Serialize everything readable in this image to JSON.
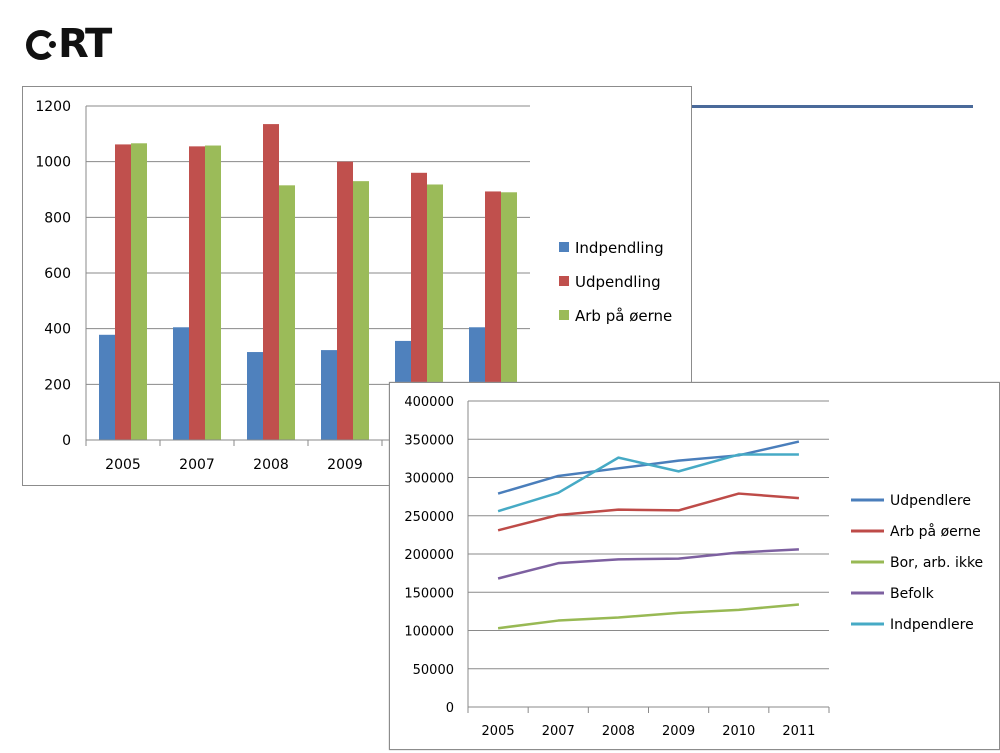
{
  "logo": {
    "letter_c": "C",
    "letters": "RT"
  },
  "colors": {
    "accent_line": "#4a6a9a"
  },
  "chart_data": [
    {
      "type": "bar",
      "categories": [
        "2005",
        "2007",
        "2008",
        "2009",
        "2010",
        "2011"
      ],
      "series": [
        {
          "name": "Indpendling",
          "color": "#4f81bd",
          "values": [
            378,
            405,
            316,
            323,
            356,
            405
          ]
        },
        {
          "name": "Udpendling",
          "color": "#c0504d",
          "values": [
            1062,
            1055,
            1135,
            1000,
            960,
            893
          ]
        },
        {
          "name": "Arb på øerne",
          "color": "#9bbb59",
          "values": [
            1066,
            1058,
            915,
            930,
            918,
            890
          ]
        }
      ],
      "ylim": [
        0,
        1200
      ],
      "yticks": [
        "0",
        "200",
        "400",
        "600",
        "800",
        "1000",
        "1200"
      ],
      "grid": true,
      "legend": "right"
    },
    {
      "type": "line",
      "categories": [
        "2005",
        "2007",
        "2008",
        "2009",
        "2010",
        "2011"
      ],
      "series": [
        {
          "name": "Udpendlere",
          "color": "#4a7ebb",
          "values": [
            279000,
            302000,
            312000,
            322000,
            329000,
            347000
          ]
        },
        {
          "name": "Arb på øerne",
          "color": "#be4b48",
          "values": [
            231000,
            251000,
            258000,
            257000,
            279000,
            273000
          ]
        },
        {
          "name": "Bor, arb. ikke",
          "color": "#98b954",
          "values": [
            103000,
            113000,
            117000,
            123000,
            127000,
            134000
          ]
        },
        {
          "name": "Befolk",
          "color": "#7d60a0",
          "values": [
            168000,
            188000,
            193000,
            194000,
            202000,
            206000
          ]
        },
        {
          "name": "Indpendlere",
          "color": "#46aac5",
          "values": [
            256000,
            280000,
            326000,
            308000,
            330000,
            330000
          ]
        }
      ],
      "ylim": [
        0,
        400000
      ],
      "yticks": [
        "0",
        "50000",
        "100000",
        "150000",
        "200000",
        "250000",
        "300000",
        "350000",
        "400000"
      ],
      "grid": true,
      "legend": "right"
    }
  ]
}
